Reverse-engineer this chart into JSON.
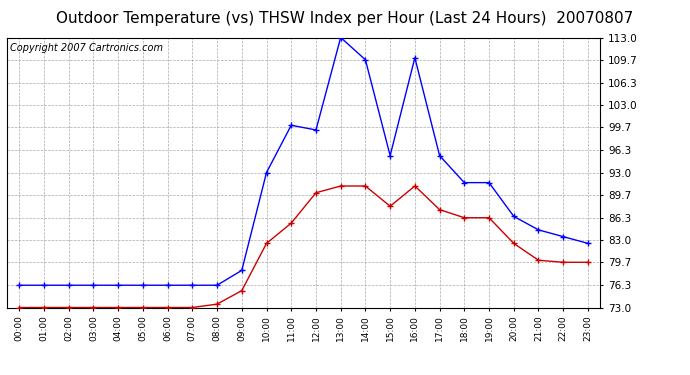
{
  "title": "Outdoor Temperature (vs) THSW Index per Hour (Last 24 Hours)  20070807",
  "copyright": "Copyright 2007 Cartronics.com",
  "hours": [
    "00:00",
    "01:00",
    "02:00",
    "03:00",
    "04:00",
    "05:00",
    "06:00",
    "07:00",
    "08:00",
    "09:00",
    "10:00",
    "11:00",
    "12:00",
    "13:00",
    "14:00",
    "15:00",
    "16:00",
    "17:00",
    "18:00",
    "19:00",
    "20:00",
    "21:00",
    "22:00",
    "23:00"
  ],
  "blue_data": [
    76.3,
    76.3,
    76.3,
    76.3,
    76.3,
    76.3,
    76.3,
    76.3,
    76.3,
    78.5,
    93.0,
    100.0,
    99.3,
    113.0,
    109.7,
    95.5,
    110.0,
    95.5,
    91.5,
    91.5,
    86.5,
    84.5,
    83.5,
    82.5
  ],
  "red_data": [
    73.0,
    73.0,
    73.0,
    73.0,
    73.0,
    73.0,
    73.0,
    73.0,
    73.5,
    75.5,
    82.5,
    85.5,
    90.0,
    91.0,
    91.0,
    88.0,
    91.0,
    87.5,
    86.3,
    86.3,
    82.5,
    80.0,
    79.7,
    79.7
  ],
  "ylim_min": 73.0,
  "ylim_max": 113.0,
  "ytick_values": [
    73.0,
    76.3,
    79.7,
    83.0,
    86.3,
    89.7,
    93.0,
    96.3,
    99.7,
    103.0,
    106.3,
    109.7,
    113.0
  ],
  "blue_color": "#0000ff",
  "red_color": "#cc0000",
  "bg_color": "#ffffff",
  "plot_bg_color": "#ffffff",
  "grid_color": "#aaaaaa",
  "title_fontsize": 11,
  "copyright_fontsize": 7
}
